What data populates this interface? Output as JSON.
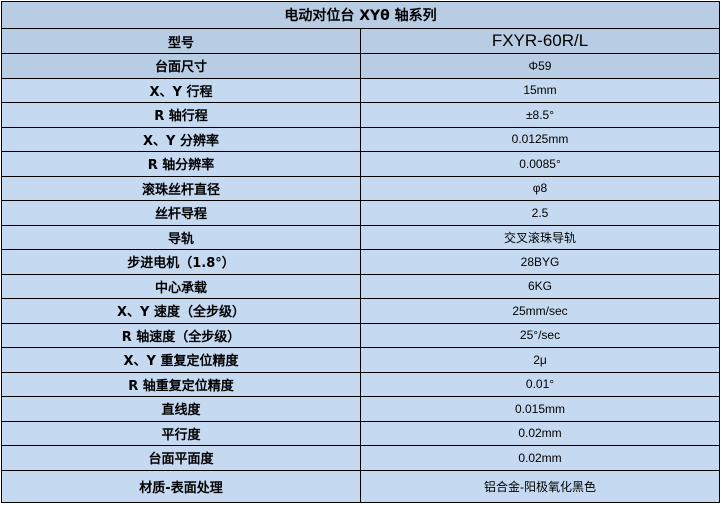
{
  "title": "电动对位台 XYθ 轴系列",
  "colors": {
    "header_bg": "#b8cce4",
    "row_bg": "#c5d9f1",
    "border": "#000000"
  },
  "rows": [
    {
      "label": "型号",
      "value": "FXYR-60R/L"
    },
    {
      "label": "台面尺寸",
      "value": "Φ59"
    },
    {
      "label": "X、Y 行程",
      "value": "15mm"
    },
    {
      "label": "R 轴行程",
      "value": "±8.5°"
    },
    {
      "label": "X、Y 分辨率",
      "value": "0.0125mm"
    },
    {
      "label": "R 轴分辨率",
      "value": "0.0085°"
    },
    {
      "label": "滚珠丝杆直径",
      "value": "φ8"
    },
    {
      "label": "丝杆导程",
      "value": "2.5"
    },
    {
      "label": "导轨",
      "value": "交叉滚珠导轨"
    },
    {
      "label": "步进电机（1.8°）",
      "value": "28BYG"
    },
    {
      "label": "中心承载",
      "value": "6KG"
    },
    {
      "label": "X、Y 速度（全步级）",
      "value": "25mm/sec"
    },
    {
      "label": "R 轴速度（全步级）",
      "value": "25°/sec"
    },
    {
      "label": "X、Y 重复定位精度",
      "value": "2μ"
    },
    {
      "label": "R 轴重复定位精度",
      "value": "0.01°"
    },
    {
      "label": "直线度",
      "value": "0.015mm"
    },
    {
      "label": "平行度",
      "value": "0.02mm"
    },
    {
      "label": "台面平面度",
      "value": "0.02mm"
    },
    {
      "label": "材质-表面处理",
      "value": "铝合金-阳极氧化黑色"
    }
  ]
}
